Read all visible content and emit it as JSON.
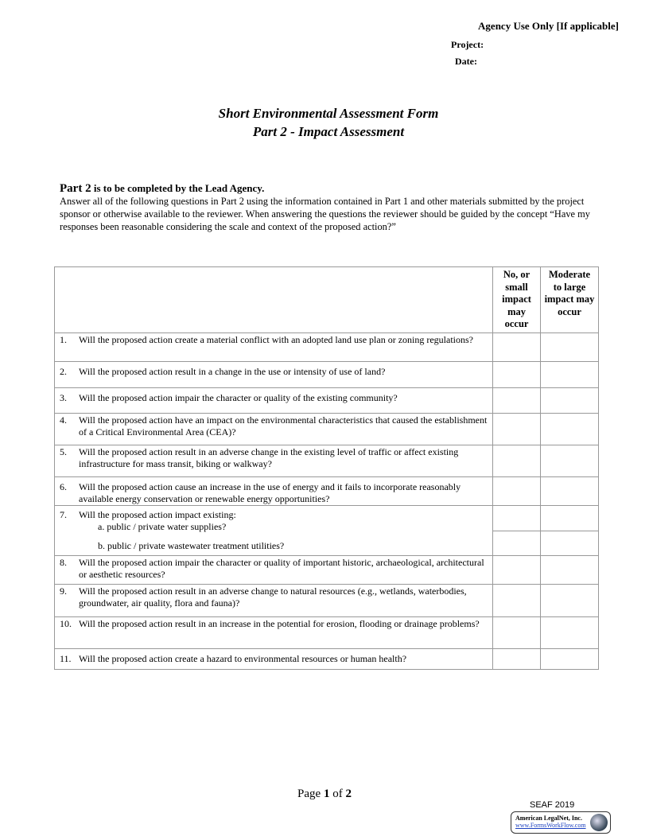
{
  "agency": {
    "heading": "Agency Use Only [If applicable]",
    "project_label": "Project:",
    "date_label": "Date:"
  },
  "title": {
    "line1": "Short Environmental Assessment Form",
    "line2": "Part 2 - Impact Assessment"
  },
  "intro": {
    "head_part": "Part 2",
    "head_rest": " is to be completed by the Lead Agency.",
    "body": "Answer all of the following questions in Part 2 using the information contained in Part 1 and other materials submitted by the project sponsor or otherwise available to the reviewer. When answering the questions the reviewer should be guided by the concept “Have my responses been reasonable considering the scale and context of the proposed action?”"
  },
  "table": {
    "col1_header": "No, or small impact may occur",
    "col2_header": "Moderate to large impact may occur",
    "questions": [
      {
        "num": "1.",
        "text": "Will the proposed action create a material conflict with an adopted land use plan or zoning regulations?"
      },
      {
        "num": "2.",
        "text": "Will the proposed action result in a change in the use or intensity of use of land?"
      },
      {
        "num": "3.",
        "text": "Will the proposed action impair the character or quality of the existing community?"
      },
      {
        "num": "4.",
        "text": "Will the proposed action have an impact on the environmental characteristics that caused the establishment of a Critical Environmental Area (CEA)?"
      },
      {
        "num": "5.",
        "text": "Will the proposed action result in an adverse change in the existing level of traffic or affect existing infrastructure for mass transit, biking or walkway?"
      },
      {
        "num": "6.",
        "text": "Will the proposed action cause an increase in the use of energy and it fails to incorporate reasonably available energy conservation or renewable energy opportunities?"
      },
      {
        "num": "7.",
        "text": "Will the proposed action impact existing:",
        "sub_a": "a. public / private water supplies?",
        "sub_b": "b. public / private wastewater treatment utilities?"
      },
      {
        "num": "8.",
        "text": "Will the proposed action impair the character or quality of important historic, archaeological, architectural or aesthetic resources?"
      },
      {
        "num": "9.",
        "text": "Will the proposed action result in an adverse change to natural resources (e.g., wetlands, waterbodies, groundwater, air quality, flora and fauna)?"
      },
      {
        "num": "10.",
        "text": "Will the proposed action result in an increase in the potential for erosion, flooding or drainage problems?"
      },
      {
        "num": "11.",
        "text": "Will the proposed action create a hazard to environmental resources or human health?"
      }
    ]
  },
  "footer": {
    "page_word": "Page",
    "page_num": "1",
    "of_word": "of",
    "page_total": "2",
    "form_id": "SEAF 2019",
    "logo_name": "American LegalNet, Inc.",
    "logo_url": "www.FormsWorkFlow.com"
  }
}
